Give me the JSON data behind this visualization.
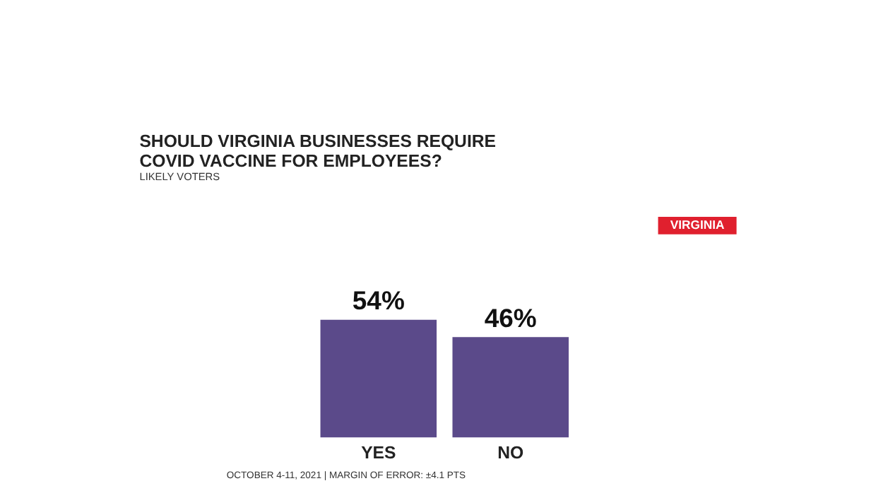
{
  "chart_data": {
    "type": "bar",
    "title": [
      "SHOULD VIRGINIA BUSINESSES REQUIRE",
      "COVID VACCINE FOR EMPLOYEES?"
    ],
    "subtitle": "LIKELY VOTERS",
    "categories": [
      "YES",
      "NO"
    ],
    "values": [
      54,
      46
    ],
    "color": "#5b4a8a",
    "value_labels": [
      "54%",
      "46%"
    ],
    "grid": false,
    "annotations": [
      "VIRGINIA",
      "OCTOBER 4-11, 2021 | MARGIN OF ERROR: ±4.1 PTS"
    ]
  }
}
